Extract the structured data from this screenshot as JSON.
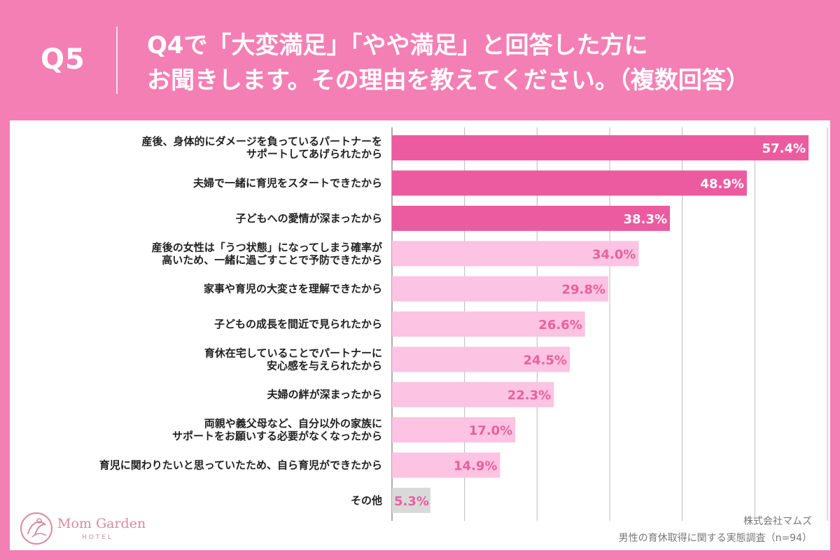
{
  "header": {
    "q_label": "Q5",
    "question_line1": "Q4で「大変満足」「やや満足」と回答した方に",
    "question_line2": "お聞きします。その理由を教えてください。（複数回答）"
  },
  "colors": {
    "page_bg": "#f47fb4",
    "bar_dark": "#ec5b9f",
    "bar_light": "#fcc3e2",
    "bar_other": "#d9d9d9",
    "value_on_dark": "#ffffff",
    "value_on_light": "#e8609f",
    "grid": "#b8b8b8"
  },
  "logo": {
    "name": "Mom Garden",
    "sub": "HOTEL"
  },
  "source": {
    "company": "株式会社マムズ",
    "survey": "男性の育休取得に関する実態調査（n=94）"
  },
  "chart_data": {
    "type": "bar",
    "orientation": "horizontal",
    "title": "",
    "xlim": [
      0,
      60
    ],
    "grid": true,
    "categories": [
      "産後、身体的にダメージを負っているパートナーを\nサポートしてあげられたから",
      "夫婦で一緒に育児をスタートできたから",
      "子どもへの愛情が深まったから",
      "産後の女性は「うつ状態」になってしまう確率が\n高いため、一緒に過ごすことで予防できたから",
      "家事や育児の大変さを理解できたから",
      "子どもの成長を間近で見られたから",
      "育休在宅していることでパートナーに\n安心感を与えられたから",
      "夫婦の絆が深まったから",
      "両親や義父母など、自分以外の家族に\nサポートをお願いする必要がなくなったから",
      "育児に関わりたいと思っていたため、自ら育児ができたから",
      "その他"
    ],
    "values": [
      57.4,
      48.9,
      38.3,
      34.0,
      29.8,
      26.6,
      24.5,
      22.3,
      17.0,
      14.9,
      5.3
    ],
    "value_labels": [
      "57.4%",
      "48.9%",
      "38.3%",
      "34.0%",
      "29.8%",
      "26.6%",
      "24.5%",
      "22.3%",
      "17.0%",
      "14.9%",
      "5.3%"
    ],
    "highlight_top": 3
  }
}
